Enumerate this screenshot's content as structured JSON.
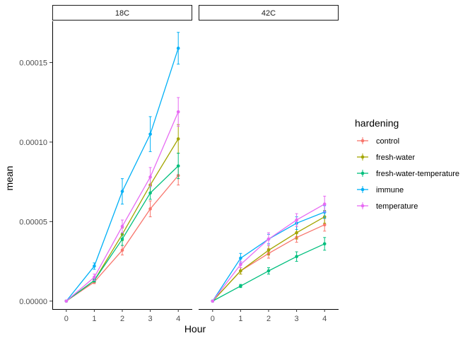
{
  "chart_data": {
    "type": "line",
    "xlabel": "Hour",
    "ylabel": "mean",
    "x": [
      0,
      1,
      2,
      3,
      4
    ],
    "xlim": [
      -0.5,
      4.5
    ],
    "ylim": [
      -5e-06,
      0.000176
    ],
    "yticks": [
      0,
      5e-05,
      0.0001,
      0.00015
    ],
    "ytick_labels": [
      "0.00000",
      "0.00005",
      "0.00010",
      "0.00015"
    ],
    "xtick_labels": [
      "0",
      "1",
      "2",
      "3",
      "4"
    ],
    "error_bars": true,
    "grid": false,
    "legend": {
      "title": "hardening",
      "placement": "right",
      "entries": [
        "control",
        "fresh-water",
        "fresh-water-temperature",
        "immune",
        "temperature"
      ]
    },
    "colors": {
      "control": "#F8766D",
      "fresh-water": "#A3A500",
      "fresh-water-temperature": "#00BF7D",
      "immune": "#00B0F6",
      "temperature": "#E76BF3"
    },
    "facets": [
      {
        "label": "18C",
        "series": [
          {
            "name": "control",
            "values": [
              0,
              1.2e-05,
              3.2e-05,
              5.8e-05,
              7.9e-05
            ],
            "errors": [
              0,
              1e-06,
              3e-06,
              5e-06,
              6e-06
            ]
          },
          {
            "name": "fresh-water",
            "values": [
              0,
              1.3e-05,
              4.2e-05,
              7.3e-05,
              0.000102
            ],
            "errors": [
              0,
              1e-06,
              4e-06,
              5e-06,
              9e-06
            ]
          },
          {
            "name": "fresh-water-temperature",
            "values": [
              0,
              1.3e-05,
              3.9e-05,
              6.8e-05,
              8.5e-05
            ],
            "errors": [
              0,
              1e-06,
              4e-06,
              4e-06,
              8e-06
            ]
          },
          {
            "name": "immune",
            "values": [
              0,
              2.2e-05,
              6.9e-05,
              0.000105,
              0.000159
            ],
            "errors": [
              0,
              2e-06,
              8e-06,
              1.1e-05,
              1e-05
            ]
          },
          {
            "name": "temperature",
            "values": [
              0,
              1.5e-05,
              4.7e-05,
              7.8e-05,
              0.000119
            ],
            "errors": [
              0,
              2e-06,
              4e-06,
              6e-06,
              9e-06
            ]
          }
        ]
      },
      {
        "label": "42C",
        "series": [
          {
            "name": "control",
            "values": [
              0,
              1.9e-05,
              3e-05,
              4e-05,
              4.8e-05
            ],
            "errors": [
              0,
              2e-06,
              3e-06,
              3e-06,
              4e-06
            ]
          },
          {
            "name": "fresh-water",
            "values": [
              0,
              1.9e-05,
              3.2e-05,
              4.3e-05,
              5.3e-05
            ],
            "errors": [
              0,
              2e-06,
              3e-06,
              4e-06,
              4e-06
            ]
          },
          {
            "name": "fresh-water-temperature",
            "values": [
              0,
              9.5e-06,
              1.9e-05,
              2.8e-05,
              3.6e-05
            ],
            "errors": [
              0,
              1e-06,
              2e-06,
              3e-06,
              4e-06
            ]
          },
          {
            "name": "immune",
            "values": [
              0,
              2.7e-05,
              3.9e-05,
              4.9e-05,
              5.6e-05
            ],
            "errors": [
              0,
              3e-06,
              3e-06,
              4e-06,
              4e-06
            ]
          },
          {
            "name": "temperature",
            "values": [
              0,
              2.3e-05,
              3.9e-05,
              5.1e-05,
              6.1e-05
            ],
            "errors": [
              0,
              2e-06,
              4e-06,
              4e-06,
              5e-06
            ]
          }
        ]
      }
    ]
  }
}
